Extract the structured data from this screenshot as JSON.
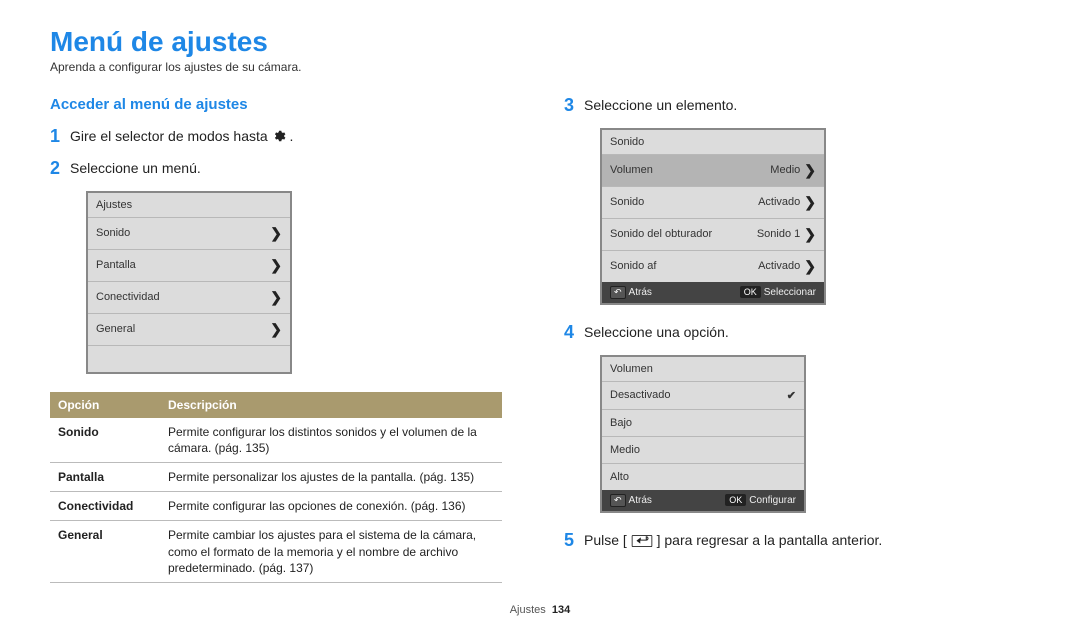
{
  "colors": {
    "accent": "#1e87e6",
    "tableHeaderBg": "#a99a6e",
    "camBg": "#dcdcdc",
    "camSel": "#b4b4b4",
    "camFootBg": "#444444",
    "border": "#888888"
  },
  "typography": {
    "title_pt": 28,
    "body_pt": 14,
    "small_pt": 12,
    "cam_pt": 11
  },
  "title": "Menú de ajustes",
  "subtitle": "Aprenda a configurar los ajustes de su cámara.",
  "section_heading": "Acceder al menú de ajustes",
  "steps": {
    "s1_pre": "Gire el selector de modos hasta ",
    "s1_post": " .",
    "s2": "Seleccione un menú.",
    "s3": "Seleccione un elemento.",
    "s4": "Seleccione una opción.",
    "s5_pre": "Pulse [",
    "s5_post": "] para regresar a la pantalla anterior."
  },
  "cam1": {
    "head": "Ajustes",
    "rows": [
      {
        "label": "Sonido",
        "chev": true
      },
      {
        "label": "Pantalla",
        "chev": true
      },
      {
        "label": "Conectividad",
        "chev": true
      },
      {
        "label": "General",
        "chev": true
      },
      {
        "label": "",
        "chev": false
      }
    ]
  },
  "cam2": {
    "head": "Sonido",
    "rows": [
      {
        "label": "Volumen",
        "val": "Medio",
        "sel": true,
        "chev": true
      },
      {
        "label": "Sonido",
        "val": "Activado",
        "chev": true
      },
      {
        "label": "Sonido del obturador",
        "val": "Sonido 1",
        "chev": true
      },
      {
        "label": "Sonido af",
        "val": "Activado",
        "chev": true
      }
    ],
    "foot": {
      "back": "Atrás",
      "ok": "Seleccionar"
    }
  },
  "cam3": {
    "head": "Volumen",
    "rows": [
      {
        "label": "Desactivado",
        "tick": true
      },
      {
        "label": "Bajo"
      },
      {
        "label": "Medio"
      },
      {
        "label": "Alto"
      }
    ],
    "foot": {
      "back": "Atrás",
      "ok": "Configurar"
    }
  },
  "desc_table": {
    "col1": "Opción",
    "col2": "Descripción",
    "rows": [
      {
        "opt": "Sonido",
        "desc": "Permite configurar los distintos sonidos y el volumen de la cámara. (pág. 135)"
      },
      {
        "opt": "Pantalla",
        "desc": "Permite personalizar los ajustes de la pantalla. (pág. 135)"
      },
      {
        "opt": "Conectividad",
        "desc": "Permite configurar las opciones de conexión. (pág. 136)"
      },
      {
        "opt": "General",
        "desc": "Permite cambiar los ajustes para el sistema de la cámara, como el formato de la memoria y el nombre de archivo predeterminado. (pág. 137)"
      }
    ]
  },
  "footer": {
    "section": "Ajustes",
    "page": "134"
  }
}
